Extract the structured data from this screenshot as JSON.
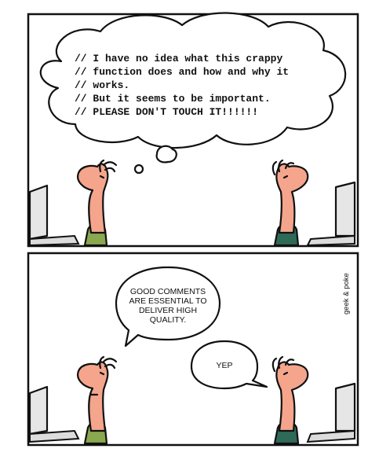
{
  "panel1": {
    "thought_lines": [
      "// I have no idea what this crappy",
      "// function does and how and why it",
      "// works.",
      "// But it seems to be important.",
      "// PLEASE DON'T TOUCH IT!!!!!!"
    ]
  },
  "panel2": {
    "speech_left_lines": [
      "GOOD COMMENTS",
      "ARE ESSENTIAL TO",
      "DELIVER HIGH",
      "QUALITY."
    ],
    "speech_right": "YEP",
    "credit": "geek & poke"
  },
  "colors": {
    "skin": "#f4a58c",
    "shirt_left": "#89a84f",
    "shirt_right": "#2f6a58",
    "monitor": "#e6e6e6"
  }
}
